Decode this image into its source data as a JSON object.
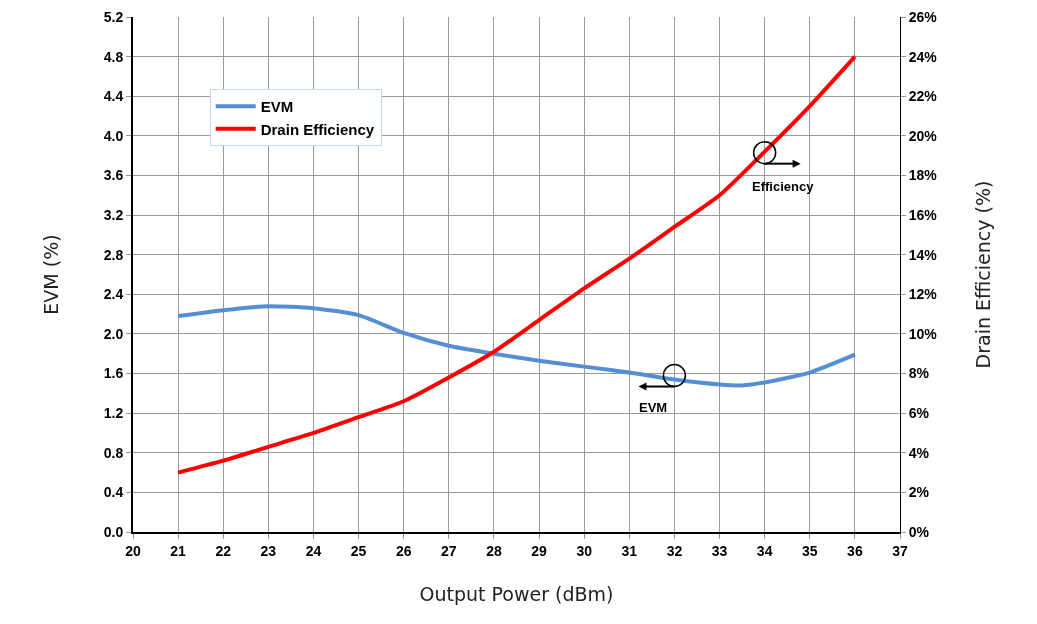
{
  "chart_data": {
    "type": "line",
    "xlabel": "Output Power (dBm)",
    "ylabel": "EVM (%)",
    "y2label": "Drain Efficiency (%)",
    "x": [
      21,
      22,
      23,
      24,
      25,
      26,
      27,
      28,
      29,
      30,
      31,
      32,
      33,
      33.5,
      34,
      35,
      36
    ],
    "series": [
      {
        "name": "EVM",
        "color": "#558ed5",
        "values": [
          2.18,
          2.24,
          2.28,
          2.26,
          2.19,
          2.01,
          1.88,
          1.8,
          1.73,
          1.67,
          1.61,
          1.54,
          1.49,
          1.48,
          1.51,
          1.61,
          1.79
        ]
      },
      {
        "name": "Drain Efficiency",
        "color": "#ff0000",
        "axis": "y2",
        "x": [
          21,
          22,
          23,
          24,
          25,
          26,
          27,
          28,
          29,
          30,
          31,
          32,
          33,
          34,
          35,
          36
        ],
        "values": [
          3.0,
          3.6,
          4.3,
          5.0,
          5.8,
          6.6,
          7.8,
          9.1,
          10.7,
          12.3,
          13.8,
          15.4,
          17.0,
          19.2,
          21.5,
          24.0
        ]
      }
    ],
    "xlim": [
      20,
      37
    ],
    "xticks": [
      20,
      21,
      22,
      23,
      24,
      25,
      26,
      27,
      28,
      29,
      30,
      31,
      32,
      33,
      34,
      35,
      36,
      37
    ],
    "ylim": [
      0,
      5.2
    ],
    "yticks": [
      {
        "value": 0,
        "label": "0.0"
      },
      0.4,
      0.8,
      1.2,
      1.6,
      {
        "value": 2,
        "label": "2.0"
      },
      2.4,
      2.8,
      3.2,
      3.6,
      {
        "value": 4,
        "label": "4.0"
      },
      4.4,
      4.8,
      5.2
    ],
    "y2lim": [
      0,
      26
    ],
    "y2ticks": [
      {
        "value": 0,
        "label": "0%"
      },
      {
        "value": 2,
        "label": "2%"
      },
      {
        "value": 4,
        "label": "4%"
      },
      {
        "value": 6,
        "label": "6%"
      },
      {
        "value": 8,
        "label": "8%"
      },
      {
        "value": 10,
        "label": "10%"
      },
      {
        "value": 12,
        "label": "12%"
      },
      {
        "value": 14,
        "label": "14%"
      },
      {
        "value": 16,
        "label": "16%"
      },
      {
        "value": 18,
        "label": "18%"
      },
      {
        "value": 20,
        "label": "20%"
      },
      {
        "value": 22,
        "label": "22%"
      },
      {
        "value": 24,
        "label": "24%"
      },
      {
        "value": 26,
        "label": "26%"
      }
    ],
    "annotations": [
      {
        "text": "EVM",
        "x": 32,
        "y": 1.58
      },
      {
        "text": "Efficiency",
        "x": 34,
        "y": 3.83
      }
    ],
    "grid": true,
    "legend": "top left",
    "marker": "none",
    "line_style": "solid"
  }
}
